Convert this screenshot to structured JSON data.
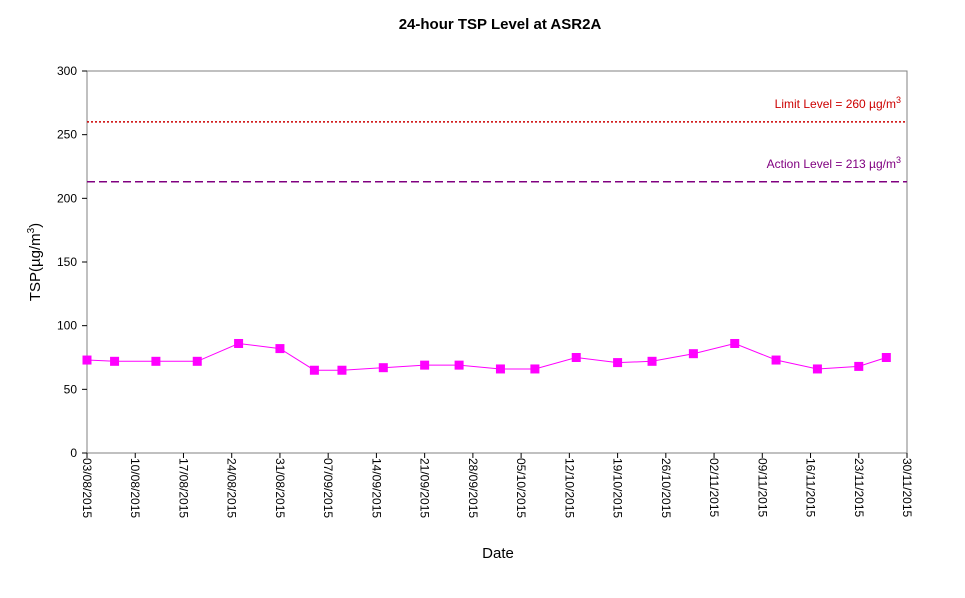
{
  "chart_data": {
    "type": "line",
    "title": "24-hour TSP Level at ASR2A",
    "xlabel": "Date",
    "ylabel": "TSP(µg/m3)",
    "ylim": [
      0,
      300
    ],
    "xlim": [
      "03/08/2015",
      "30/11/2015"
    ],
    "yticks": [
      0,
      50,
      100,
      150,
      200,
      250,
      300
    ],
    "xticks": [
      "03/08/2015",
      "10/08/2015",
      "17/08/2015",
      "24/08/2015",
      "31/08/2015",
      "07/09/2015",
      "14/09/2015",
      "21/09/2015",
      "28/09/2015",
      "05/10/2015",
      "12/10/2015",
      "19/10/2015",
      "26/10/2015",
      "02/11/2015",
      "09/11/2015",
      "16/11/2015",
      "23/11/2015",
      "30/11/2015"
    ],
    "grid": false,
    "series": [
      {
        "color": "#ff00ff",
        "marker": "square",
        "x": [
          "03/08/2015",
          "07/08/2015",
          "13/08/2015",
          "19/08/2015",
          "25/08/2015",
          "31/08/2015",
          "05/09/2015",
          "09/09/2015",
          "15/09/2015",
          "21/09/2015",
          "26/09/2015",
          "02/10/2015",
          "07/10/2015",
          "13/10/2015",
          "19/10/2015",
          "24/10/2015",
          "30/10/2015",
          "05/11/2015",
          "11/11/2015",
          "17/11/2015",
          "23/11/2015",
          "27/11/2015"
        ],
        "y": [
          73,
          72,
          72,
          72,
          86,
          82,
          65,
          65,
          67,
          69,
          69,
          66,
          66,
          75,
          71,
          72,
          78,
          86,
          73,
          66,
          68,
          75
        ]
      }
    ],
    "reference_lines": [
      {
        "value": 260,
        "label": "Limit Level  = 260 µg/m",
        "sup": "3",
        "color": "#cc0000",
        "style": "dotted"
      },
      {
        "value": 213,
        "label": "Action Level  = 213 µg/m",
        "sup": "3",
        "color": "#800080",
        "style": "dashed"
      }
    ]
  }
}
